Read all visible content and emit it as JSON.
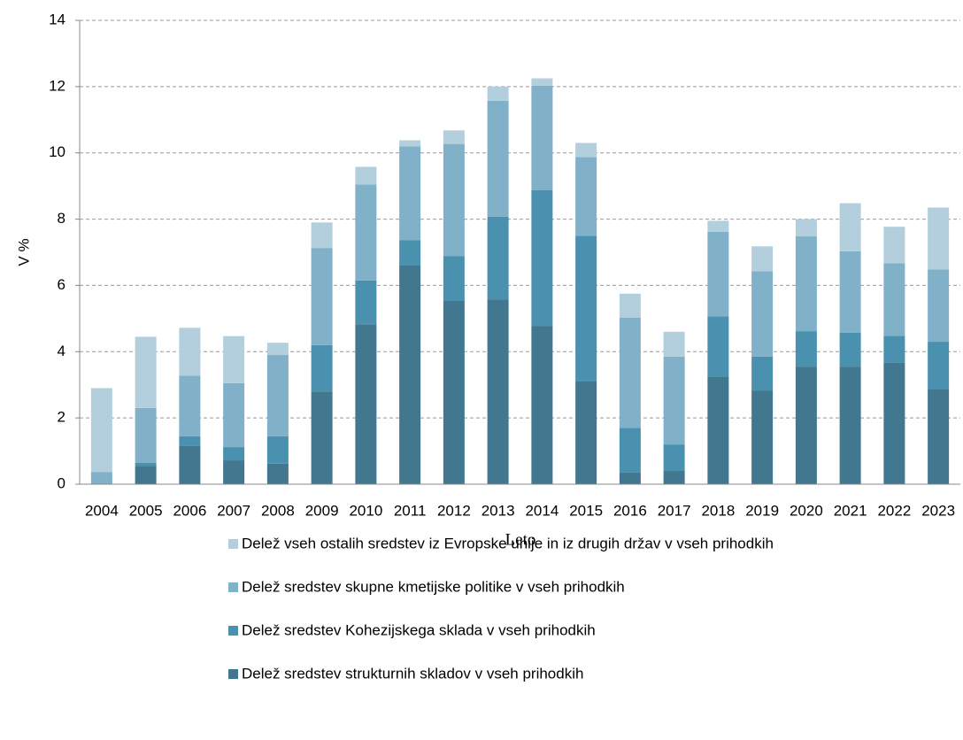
{
  "chart_data": {
    "type": "stacked_bar",
    "x_label": "Leto",
    "y_label": "V %",
    "categories": [
      "2004",
      "2005",
      "2006",
      "2007",
      "2008",
      "2009",
      "2010",
      "2011",
      "2012",
      "2013",
      "2014",
      "2015",
      "2016",
      "2017",
      "2018",
      "2019",
      "2020",
      "2021",
      "2022",
      "2023"
    ],
    "series": [
      {
        "name": "Delež sredstev strukturnih skladov v vseh prihodkih",
        "color": "#41788f",
        "values": [
          0,
          0.55,
          1.15,
          0.72,
          0.62,
          2.8,
          4.83,
          6.6,
          5.53,
          5.58,
          4.78,
          3.1,
          0.35,
          0.4,
          3.25,
          2.83,
          3.55,
          3.55,
          3.67,
          2.88
        ]
      },
      {
        "name": "Delež sredstev Kohezijskega sklada v vseh prihodkih",
        "color": "#4a91b0",
        "values": [
          0,
          0.1,
          0.3,
          0.4,
          0.83,
          1.4,
          1.32,
          0.77,
          1.35,
          2.49,
          4.1,
          4.4,
          1.35,
          0.8,
          1.82,
          1.02,
          1.07,
          1.02,
          0.81,
          1.42
        ]
      },
      {
        "name": "Delež sredstev skupne kmetijske politike v vseh prihodkih",
        "color": "#80b1c9",
        "values": [
          0.37,
          1.65,
          1.83,
          1.93,
          2.45,
          2.93,
          2.9,
          2.83,
          3.39,
          3.5,
          3.15,
          2.37,
          3.33,
          2.65,
          2.55,
          2.58,
          2.86,
          2.46,
          2.19,
          2.18
        ]
      },
      {
        "name": "Delež vseh ostalih sredstev iz Evropske unije in iz drugih držav v vseh prihodkih",
        "color": "#b3cfdd",
        "values": [
          2.53,
          2.15,
          1.44,
          1.42,
          0.37,
          0.77,
          0.53,
          0.18,
          0.41,
          0.43,
          0.22,
          0.43,
          0.72,
          0.75,
          0.33,
          0.75,
          0.52,
          1.45,
          1.1,
          1.87
        ]
      }
    ],
    "ylim": [
      0,
      14
    ],
    "yticks": [
      0,
      2,
      4,
      6,
      8,
      10,
      12,
      14
    ],
    "grid": true
  }
}
